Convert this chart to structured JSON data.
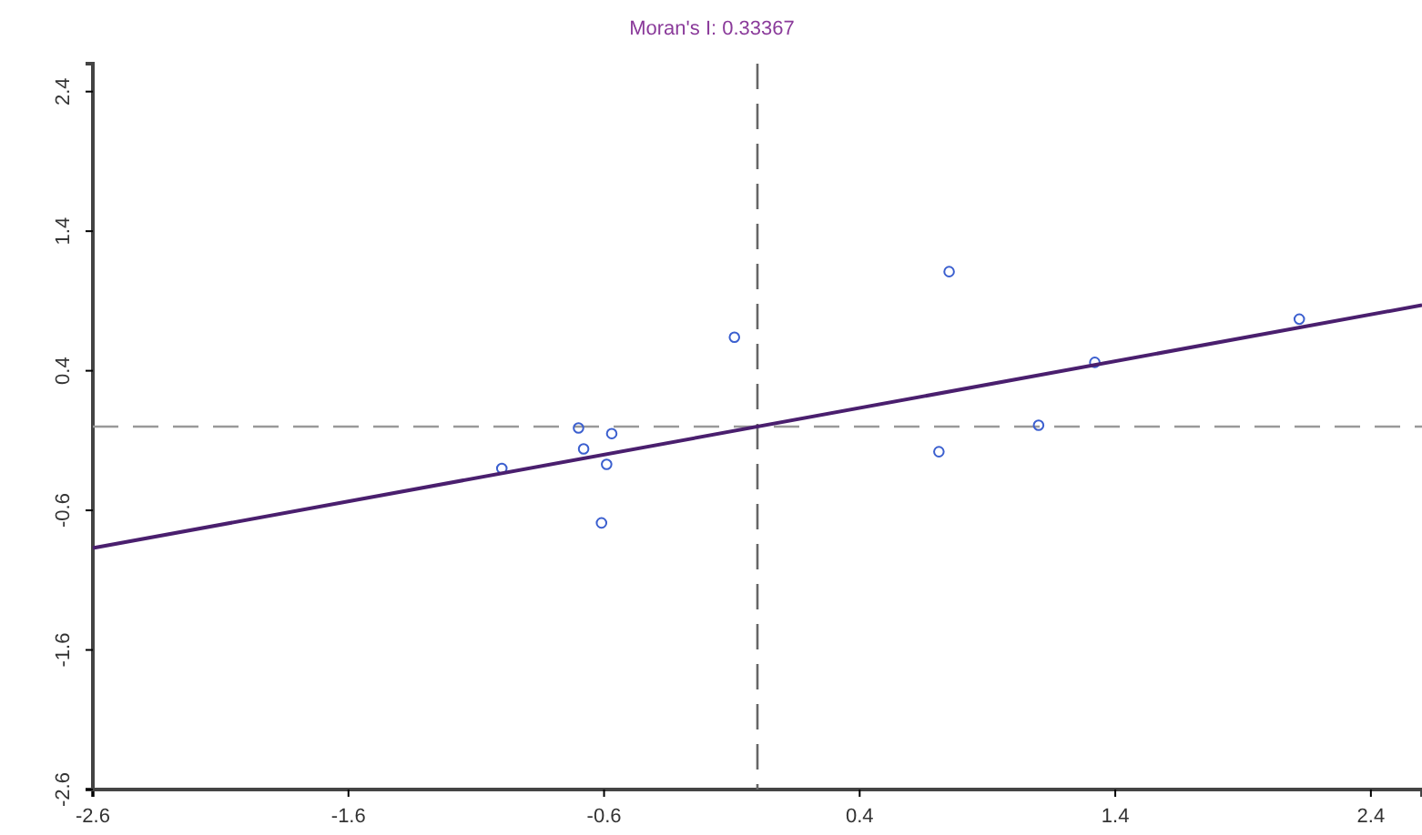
{
  "chart_data": {
    "type": "scatter",
    "title": "Moran's I: 0.33367",
    "xlim": [
      -2.6,
      2.6
    ],
    "ylim": [
      -2.6,
      2.6
    ],
    "xticks": [
      -2.6,
      -1.6,
      -0.6,
      0.4,
      1.4,
      2.4
    ],
    "yticks": [
      -2.6,
      -1.6,
      -0.6,
      0.4,
      1.4,
      2.4
    ],
    "grid": false,
    "marker": "circle",
    "series": [
      {
        "color": "#3b5fcf",
        "x": [
          -1.0,
          -0.7,
          -0.68,
          -0.57,
          -0.59,
          -0.61,
          -0.09,
          0.75,
          0.71,
          1.1,
          1.32,
          2.12
        ],
        "values": [
          -0.3,
          -0.01,
          -0.16,
          -0.05,
          -0.27,
          -0.69,
          0.64,
          1.11,
          -0.18,
          0.01,
          0.46,
          0.77
        ]
      },
      {
        "type": "line",
        "color": "#4a1f6e",
        "x": [
          -2.6,
          2.6
        ],
        "values": [
          -0.87,
          0.87
        ],
        "line_style": "solid",
        "marker": "none"
      }
    ],
    "ref_lines": [
      {
        "axis": "x",
        "value": 0,
        "color": "#666666",
        "line_style": "dashed"
      },
      {
        "axis": "y",
        "value": 0,
        "color": "#999999",
        "line_style": "dashed"
      }
    ]
  }
}
